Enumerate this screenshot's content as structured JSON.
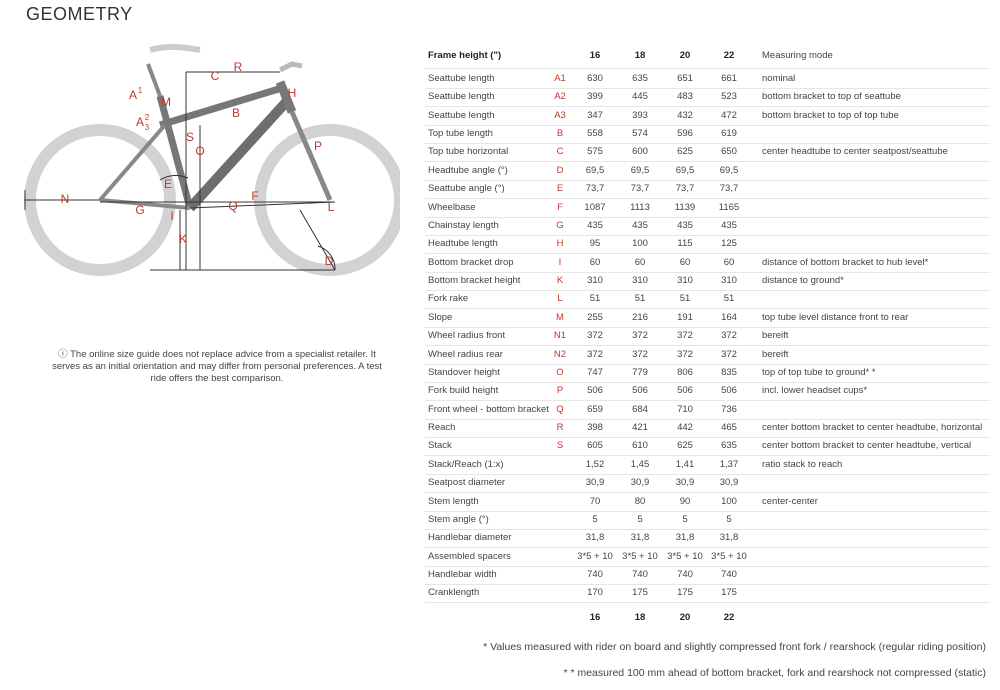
{
  "title": "GEOMETRY",
  "diagram": {
    "labels": [
      {
        "text": "A",
        "sup": "1"
      },
      {
        "text": "M"
      },
      {
        "text": "A",
        "sup": "2",
        "sub": "3"
      },
      {
        "text": "C"
      },
      {
        "text": "R"
      },
      {
        "text": "B"
      },
      {
        "text": "H"
      },
      {
        "text": "S"
      },
      {
        "text": "O"
      },
      {
        "text": "E"
      },
      {
        "text": "F"
      },
      {
        "text": "Q"
      },
      {
        "text": "G"
      },
      {
        "text": "N"
      },
      {
        "text": "I"
      },
      {
        "text": "K"
      },
      {
        "text": "L"
      },
      {
        "text": "P"
      },
      {
        "text": "D"
      }
    ]
  },
  "notice": "ⓘ The online size guide does not replace advice from a specialist retailer. It serves as an initial orientation and may differ from personal preferences. A test ride offers the best comparison.",
  "table": {
    "header": {
      "label": "Frame height (\")",
      "sizes": [
        "16",
        "18",
        "20",
        "22"
      ],
      "mode": "Measuring mode"
    },
    "rows": [
      {
        "name": "Seattube length",
        "code": "A1",
        "values": [
          "630",
          "635",
          "651",
          "661"
        ],
        "mode": "nominal"
      },
      {
        "name": "Seattube length",
        "code": "A2",
        "values": [
          "399",
          "445",
          "483",
          "523"
        ],
        "mode": "bottom bracket to top of seattube"
      },
      {
        "name": "Seattube length",
        "code": "A3",
        "values": [
          "347",
          "393",
          "432",
          "472"
        ],
        "mode": "bottom bracket to top of top tube"
      },
      {
        "name": "Top tube length",
        "code": "B",
        "values": [
          "558",
          "574",
          "596",
          "619"
        ]
      },
      {
        "name": "Top tube horizontal",
        "code": "C",
        "values": [
          "575",
          "600",
          "625",
          "650"
        ],
        "mode": "center headtube to center seatpost/seattube"
      },
      {
        "name": "Headtube angle (°)",
        "code": "D",
        "values": [
          "69,5",
          "69,5",
          "69,5",
          "69,5"
        ]
      },
      {
        "name": "Seattube angle (°)",
        "code": "E",
        "values": [
          "73,7",
          "73,7",
          "73,7",
          "73,7"
        ]
      },
      {
        "name": "Wheelbase",
        "code": "F",
        "values": [
          "1087",
          "1113",
          "1139",
          "1165"
        ]
      },
      {
        "name": "Chainstay length",
        "code": "G",
        "values": [
          "435",
          "435",
          "435",
          "435"
        ]
      },
      {
        "name": "Headtube length",
        "code": "H",
        "values": [
          "95",
          "100",
          "115",
          "125"
        ]
      },
      {
        "name": "Bottom bracket drop",
        "code": "I",
        "values": [
          "60",
          "60",
          "60",
          "60"
        ],
        "mode": "distance of bottom bracket to hub level*"
      },
      {
        "name": "Bottom bracket height",
        "code": "K",
        "values": [
          "310",
          "310",
          "310",
          "310"
        ],
        "mode": "distance to ground*"
      },
      {
        "name": "Fork rake",
        "code": "L",
        "values": [
          "51",
          "51",
          "51",
          "51"
        ]
      },
      {
        "name": "Slope",
        "code": "M",
        "values": [
          "255",
          "216",
          "191",
          "164"
        ],
        "mode": "top tube level distance front to rear"
      },
      {
        "name": "Wheel radius front",
        "code": "N1",
        "values": [
          "372",
          "372",
          "372",
          "372"
        ],
        "mode": "bereift"
      },
      {
        "name": "Wheel radius rear",
        "code": "N2",
        "values": [
          "372",
          "372",
          "372",
          "372"
        ],
        "mode": "bereift"
      },
      {
        "name": "Standover height",
        "code": "O",
        "values": [
          "747",
          "779",
          "806",
          "835"
        ],
        "mode": "top of top tube to ground* *"
      },
      {
        "name": "Fork build height",
        "code": "P",
        "values": [
          "506",
          "506",
          "506",
          "506"
        ],
        "mode": "incl. lower headset cups*"
      },
      {
        "name": "Front wheel - bottom bracket",
        "code": "Q",
        "values": [
          "659",
          "684",
          "710",
          "736"
        ]
      },
      {
        "name": "Reach",
        "code": "R",
        "values": [
          "398",
          "421",
          "442",
          "465"
        ],
        "mode": "center bottom bracket to center headtube, horizontal"
      },
      {
        "name": "Stack",
        "code": "S",
        "values": [
          "605",
          "610",
          "625",
          "635"
        ],
        "mode": "center bottom bracket to center headtube, vertical"
      },
      {
        "name": "Stack/Reach (1:x)",
        "values": [
          "1,52",
          "1,45",
          "1,41",
          "1,37"
        ],
        "mode": "ratio stack to reach"
      },
      {
        "name": "Seatpost diameter",
        "values": [
          "30,9",
          "30,9",
          "30,9",
          "30,9"
        ]
      },
      {
        "name": "Stem length",
        "values": [
          "70",
          "80",
          "90",
          "100"
        ],
        "mode": "center-center"
      },
      {
        "name": "Stem angle (°)",
        "values": [
          "5",
          "5",
          "5",
          "5"
        ]
      },
      {
        "name": "Handlebar diameter",
        "values": [
          "31,8",
          "31,8",
          "31,8",
          "31,8"
        ]
      },
      {
        "name": "Assembled spacers",
        "values": [
          "3*5 + 10",
          "3*5 + 10",
          "3*5 + 10",
          "3*5 + 10"
        ]
      },
      {
        "name": "Handlebar width",
        "values": [
          "740",
          "740",
          "740",
          "740"
        ]
      },
      {
        "name": "Cranklength",
        "values": [
          "170",
          "175",
          "175",
          "175"
        ]
      }
    ],
    "footer_sizes": [
      "16",
      "18",
      "20",
      "22"
    ]
  },
  "notes": [
    "* Values measured with rider on board and slightly compressed front fork / rearshock (regular riding position)",
    "* * measured 100 mm ahead of bottom bracket, fork and rearshock not compressed (static)"
  ]
}
